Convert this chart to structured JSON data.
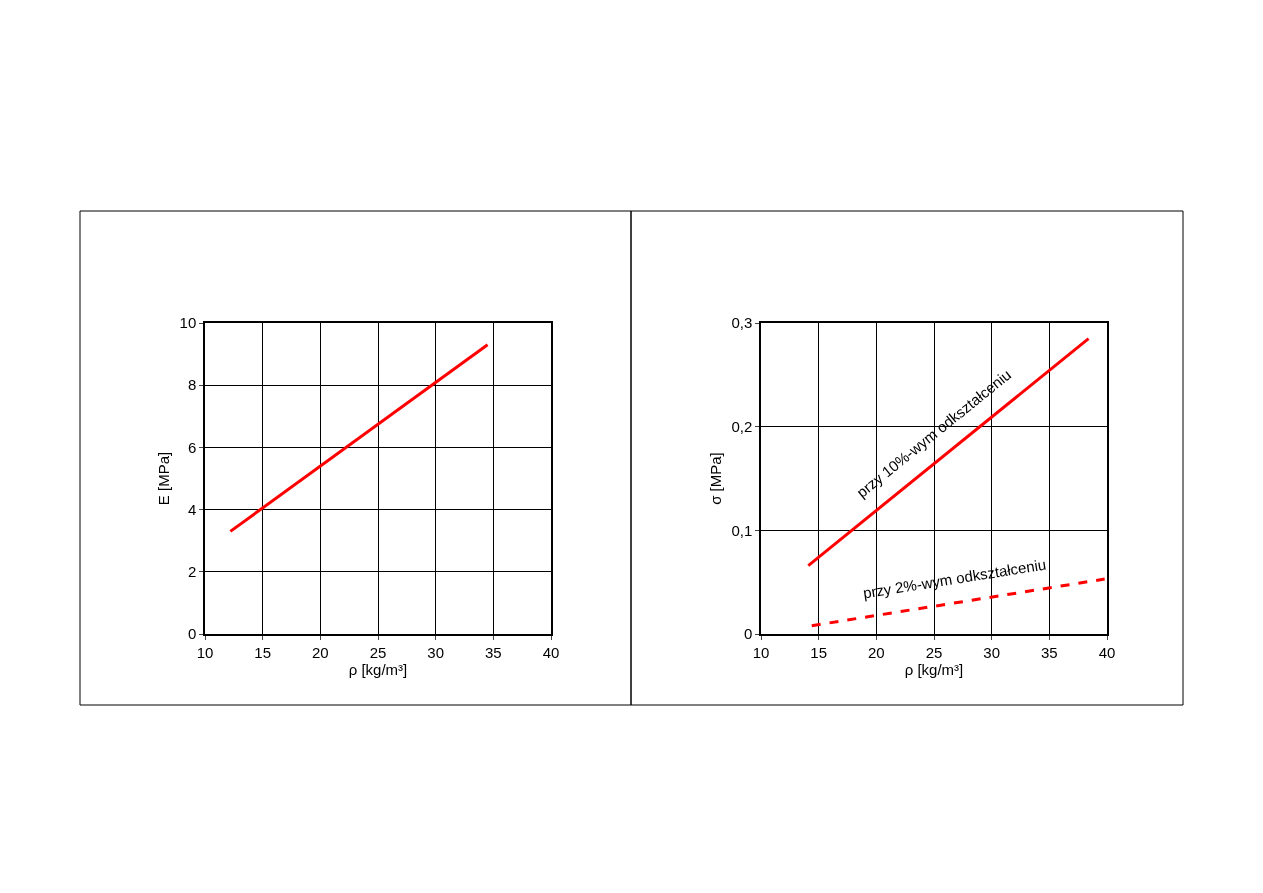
{
  "chart_data": [
    {
      "type": "line",
      "xlabel": "ρ [kg/m³]",
      "ylabel": "E [MPa]",
      "xlim": [
        10,
        40
      ],
      "xticks": [
        10,
        15,
        20,
        25,
        30,
        35,
        40
      ],
      "ylim": [
        0,
        10
      ],
      "yticks": [
        0,
        2,
        4,
        6,
        8,
        10
      ],
      "grid": true,
      "marker": "none",
      "series": [
        {
          "color": "#ff0000",
          "x": [
            12.2,
            34.5
          ],
          "values": [
            3.3,
            9.3
          ],
          "line_style": "solid"
        }
      ]
    },
    {
      "type": "line",
      "xlabel": "ρ [kg/m³]",
      "ylabel": "σ [MPa]",
      "xlim": [
        10,
        40
      ],
      "xticks": [
        10,
        15,
        20,
        25,
        30,
        35,
        40
      ],
      "ylim": [
        0,
        0.3
      ],
      "yticks": [
        0,
        {
          "value": 0.1,
          "label": "0,1"
        },
        {
          "value": 0.2,
          "label": "0,2"
        },
        {
          "value": 0.3,
          "label": "0,3"
        }
      ],
      "grid": true,
      "marker": "none",
      "series": [
        {
          "name": "przy 10%-wym odkształceniu",
          "color": "#ff0000",
          "x": [
            14.1,
            38.4
          ],
          "values": [
            0.066,
            0.285
          ],
          "line_style": "solid"
        },
        {
          "name": "przy 2%-wym odkształceniu",
          "color": "#ff0000",
          "x": [
            14.4,
            39.8
          ],
          "values": [
            0.008,
            0.053
          ],
          "line_style": "dashed"
        }
      ]
    }
  ]
}
